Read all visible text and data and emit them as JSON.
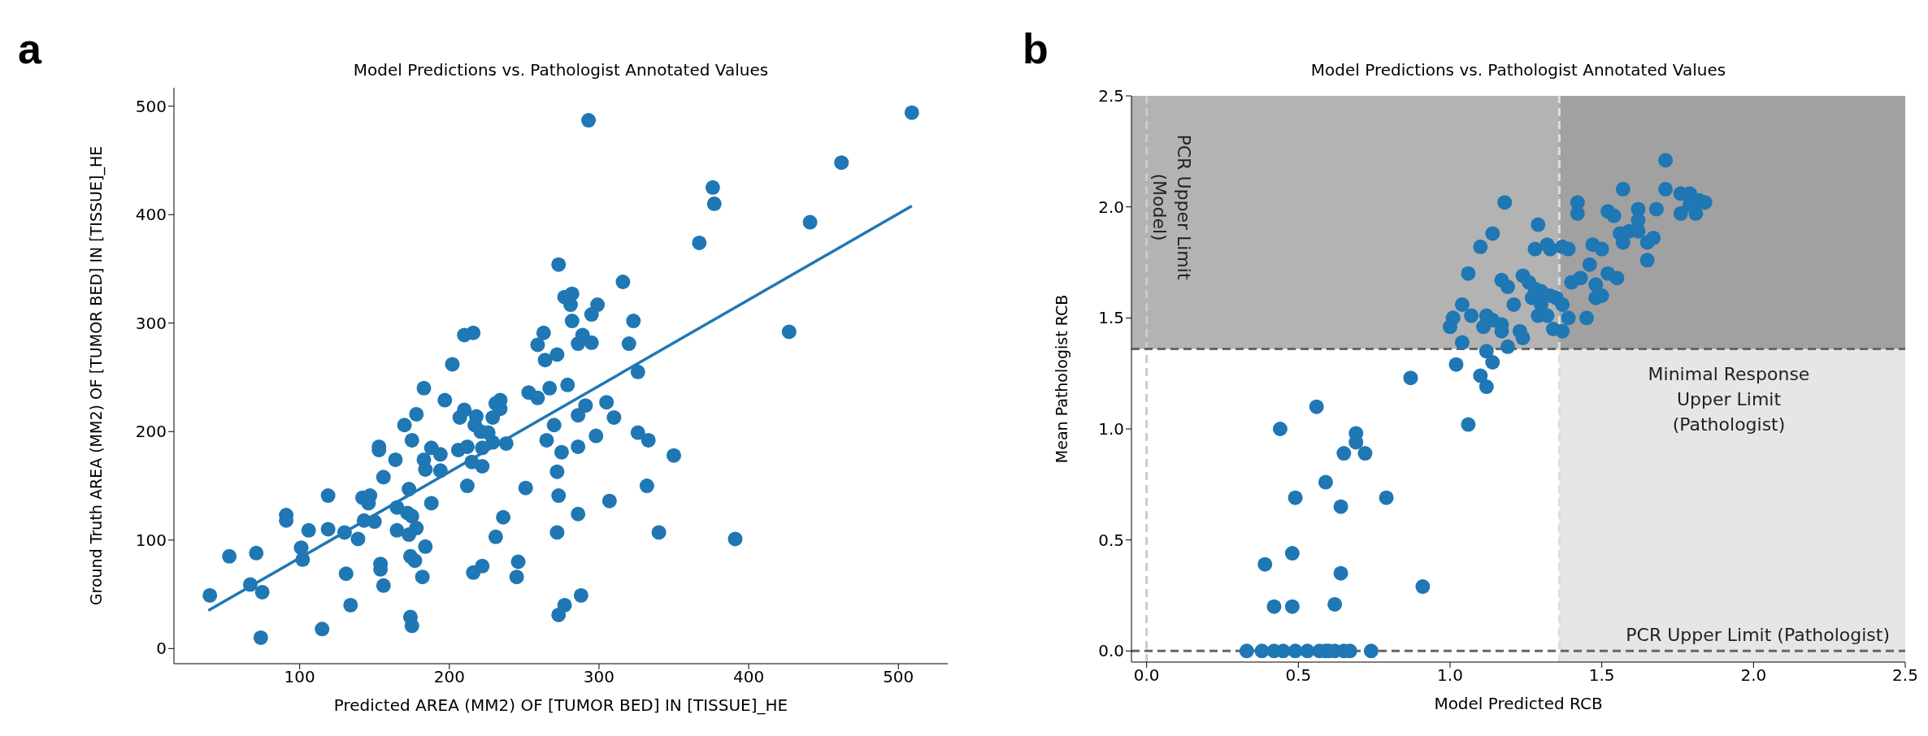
{
  "chart_data": [
    {
      "type": "scatter",
      "title": "Model Predictions vs. Pathologist Annotated Values",
      "xlabel": "Predicted AREA (MM2) OF [TUMOR BED] IN [TISSUE]_HE",
      "ylabel": "Ground Truth AREA (MM2) OF [TUMOR BED] IN [TISSUE]_HE",
      "annotations": [
        "a"
      ],
      "xlim": [
        16,
        533
      ],
      "ylim": [
        -14,
        517
      ],
      "xticks": [
        100,
        200,
        300,
        400,
        500
      ],
      "yticks": [
        0,
        100,
        200,
        300,
        400,
        500
      ],
      "series": [
        {
          "marker": "circle",
          "color": "#1f77b4",
          "x": [
            40,
            53,
            71,
            67,
            75,
            74,
            91,
            91,
            106,
            101,
            102,
            119,
            119,
            115,
            130,
            131,
            134,
            139,
            142,
            147,
            146,
            143,
            150,
            153,
            153,
            156,
            154,
            154,
            156,
            164,
            165,
            165,
            170,
            172,
            173,
            173,
            175,
            174,
            177,
            178,
            174,
            175,
            175,
            178,
            183,
            182,
            184,
            183,
            184,
            188,
            188,
            194,
            194,
            197,
            202,
            206,
            207,
            210,
            216,
            210,
            212,
            215,
            212,
            218,
            217,
            221,
            222,
            222,
            226,
            229,
            229,
            231,
            234,
            234,
            238,
            236,
            231,
            216,
            222,
            246,
            245,
            251,
            253,
            259,
            259,
            263,
            264,
            272,
            267,
            270,
            265,
            275,
            272,
            273,
            272,
            273,
            273,
            277,
            293,
            509,
            462,
            376,
            377,
            441,
            367,
            316,
            282,
            281,
            299,
            295,
            282,
            323,
            289,
            286,
            295,
            320,
            427,
            326,
            279,
            305,
            291,
            286,
            310,
            298,
            286,
            326,
            333,
            350,
            332,
            307,
            286,
            340,
            391,
            288,
            277
          ],
          "values": [
            49,
            85,
            88,
            59,
            52,
            10,
            123,
            118,
            109,
            93,
            82,
            141,
            110,
            18,
            107,
            69,
            40,
            101,
            139,
            141,
            134,
            118,
            117,
            186,
            183,
            158,
            78,
            73,
            58,
            174,
            130,
            109,
            206,
            125,
            147,
            105,
            122,
            85,
            81,
            111,
            29,
            21,
            192,
            216,
            240,
            66,
            94,
            174,
            165,
            185,
            134,
            179,
            164,
            229,
            262,
            183,
            213,
            289,
            291,
            220,
            186,
            172,
            150,
            214,
            206,
            200,
            185,
            168,
            199,
            213,
            190,
            226,
            229,
            221,
            189,
            121,
            103,
            70,
            76,
            80,
            66,
            148,
            236,
            231,
            280,
            291,
            266,
            271,
            240,
            206,
            192,
            181,
            163,
            141,
            107,
            31,
            354,
            324,
            487,
            494,
            448,
            425,
            410,
            393,
            374,
            338,
            327,
            317,
            317,
            308,
            302,
            302,
            289,
            281,
            282,
            281,
            292,
            255,
            243,
            227,
            224,
            215,
            213,
            196,
            186,
            199,
            192,
            178,
            150,
            136,
            124,
            107,
            101,
            49,
            40
          ]
        },
        {
          "type": "line",
          "marker": "none",
          "color": "#1f77b4",
          "x": [
            39,
            509
          ],
          "values": [
            35,
            408
          ]
        }
      ]
    },
    {
      "type": "scatter",
      "title": "Model Predictions vs. Pathologist Annotated Values",
      "xlabel": "Model Predicted RCB",
      "ylabel": "Mean Pathologist RCB",
      "annotations": [
        "b"
      ],
      "xlim": [
        -0.05,
        2.5
      ],
      "ylim": [
        -0.05,
        2.5
      ],
      "xticks": [
        {
          "value": 0,
          "label": "0.0"
        },
        {
          "value": 0.5,
          "label": "0.5"
        },
        {
          "value": 1,
          "label": "1.0"
        },
        {
          "value": 1.5,
          "label": "1.5"
        },
        {
          "value": 2,
          "label": "2.0"
        },
        {
          "value": 2.5,
          "label": "2.5"
        }
      ],
      "yticks": [
        {
          "value": 0,
          "label": "0.0"
        },
        {
          "value": 0.5,
          "label": "0.5"
        },
        {
          "value": 1,
          "label": "1.0"
        },
        {
          "value": 1.5,
          "label": "1.5"
        },
        {
          "value": 2,
          "label": "2.0"
        },
        {
          "value": 2.5,
          "label": "2.5"
        }
      ],
      "marker": "circle",
      "bands": [
        {
          "axis": "y",
          "from": 1.36,
          "to": 2.5,
          "color": "#b3b3b3"
        },
        {
          "axis": "x",
          "from": 1.36,
          "to": 2.5,
          "color": "#e6e6e6"
        }
      ],
      "ref_lines": [
        {
          "axis": "x",
          "value": 0,
          "label": "PCR Upper Limit\n(Model)",
          "color": "#cccccc",
          "line_style": "dashed"
        },
        {
          "axis": "y",
          "value": 0,
          "label": "PCR Upper Limit (Pathologist)",
          "color": "#666666",
          "line_style": "dashed"
        },
        {
          "axis": "y",
          "value": 1.36,
          "label": "Minimal Response\nUpper Limit\n(Pathologist)",
          "color": "#666666",
          "line_style": "dashed"
        },
        {
          "axis": "x",
          "value": 1.36,
          "color": "#dddddd",
          "line_style": "dashed"
        }
      ],
      "series": [
        {
          "color": "#1f77b4",
          "x": [
            0.33,
            0.38,
            0.42,
            0.45,
            0.49,
            0.53,
            0.57,
            0.59,
            0.6,
            0.62,
            0.65,
            0.67,
            0.74,
            0.44,
            0.56,
            0.39,
            0.48,
            0.42,
            0.48,
            0.62,
            0.64,
            0.49,
            0.59,
            0.64,
            0.79,
            0.65,
            0.69,
            0.69,
            0.72,
            0.91,
            0.87,
            1.06,
            1.02,
            1.1,
            1.12,
            1.04,
            1.12,
            1.14,
            1.19,
            1.0,
            1.01,
            1.04,
            1.07,
            1.12,
            1.11,
            1.14,
            1.17,
            1.17,
            1.23,
            1.24,
            1.21,
            1.17,
            1.19,
            1.24,
            1.06,
            1.1,
            1.14,
            1.18,
            1.28,
            1.29,
            1.32,
            1.33,
            1.37,
            1.39,
            1.26,
            1.28,
            1.3,
            1.27,
            1.33,
            1.35,
            1.37,
            1.3,
            1.29,
            1.32,
            1.34,
            1.37,
            1.39,
            1.45,
            1.4,
            1.43,
            1.48,
            1.5,
            1.48,
            1.46,
            1.52,
            1.55,
            1.47,
            1.5,
            1.42,
            1.42,
            1.52,
            1.54,
            1.57,
            1.56,
            1.57,
            1.59,
            1.62,
            1.62,
            1.62,
            1.68,
            1.65,
            1.67,
            1.65,
            1.71,
            1.71,
            1.76,
            1.79,
            1.82,
            1.84,
            1.76,
            1.81,
            1.79
          ],
          "values": [
            0,
            0,
            0,
            0,
            0,
            0,
            0,
            0,
            0,
            0,
            0,
            0,
            0,
            1.0,
            1.1,
            0.39,
            0.44,
            0.2,
            0.2,
            0.21,
            0.35,
            0.69,
            0.76,
            0.65,
            0.69,
            0.89,
            0.98,
            0.94,
            0.89,
            0.29,
            1.23,
            1.02,
            1.29,
            1.24,
            1.19,
            1.39,
            1.35,
            1.3,
            1.37,
            1.46,
            1.5,
            1.56,
            1.51,
            1.51,
            1.46,
            1.49,
            1.47,
            1.44,
            1.44,
            1.41,
            1.56,
            1.67,
            1.64,
            1.69,
            1.7,
            1.82,
            1.88,
            2.02,
            1.81,
            1.92,
            1.83,
            1.81,
            1.82,
            1.81,
            1.66,
            1.63,
            1.62,
            1.59,
            1.6,
            1.59,
            1.56,
            1.56,
            1.51,
            1.51,
            1.45,
            1.44,
            1.5,
            1.5,
            1.66,
            1.68,
            1.65,
            1.6,
            1.59,
            1.74,
            1.7,
            1.68,
            1.83,
            1.81,
            2.02,
            1.97,
            1.98,
            1.96,
            2.08,
            1.88,
            1.84,
            1.89,
            1.89,
            1.99,
            1.94,
            1.99,
            1.84,
            1.86,
            1.76,
            2.21,
            2.08,
            2.06,
            2.06,
            2.03,
            2.02,
            1.97,
            1.97,
            2.01
          ]
        }
      ]
    }
  ]
}
